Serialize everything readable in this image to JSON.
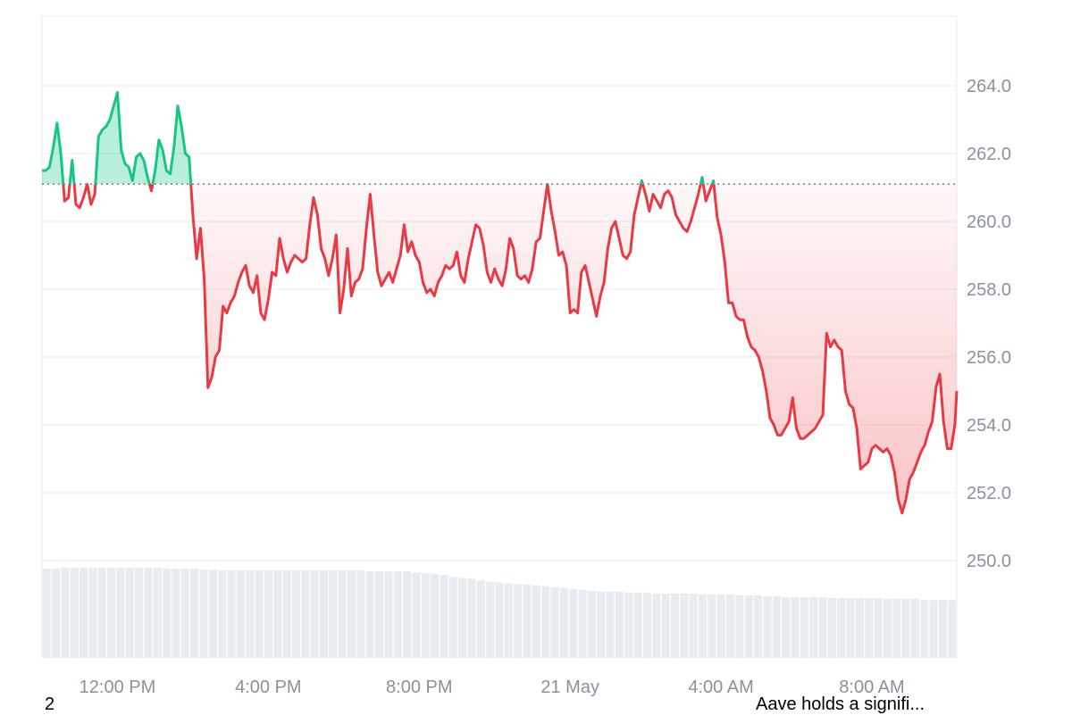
{
  "chart_data": {
    "type": "area",
    "baseline": 261.1,
    "ylim": [
      248.0,
      266.0
    ],
    "yticks": [
      250.0,
      252.0,
      254.0,
      256.0,
      258.0,
      260.0,
      262.0,
      264.0
    ],
    "ytick_labels": [
      "250.0",
      "252.0",
      "254.0",
      "256.0",
      "258.0",
      "260.0",
      "262.0",
      "264.0"
    ],
    "xlim": [
      10.0,
      34.25
    ],
    "xticks": [
      12,
      16,
      20,
      24,
      28,
      32
    ],
    "xtick_labels": [
      "12:00 PM",
      "4:00 PM",
      "8:00 PM",
      "21 May",
      "4:00 AM",
      "8:00 AM"
    ],
    "x": [
      10.0,
      10.1,
      10.2,
      10.3,
      10.4,
      10.5,
      10.6,
      10.7,
      10.8,
      10.9,
      11.0,
      11.1,
      11.2,
      11.3,
      11.4,
      11.5,
      11.6,
      11.7,
      11.8,
      11.9,
      12.0,
      12.1,
      12.2,
      12.3,
      12.4,
      12.5,
      12.6,
      12.7,
      12.8,
      12.9,
      13.0,
      13.1,
      13.2,
      13.3,
      13.4,
      13.5,
      13.6,
      13.7,
      13.8,
      13.9,
      14.0,
      14.1,
      14.2,
      14.3,
      14.4,
      14.5,
      14.6,
      14.7,
      14.8,
      14.9,
      15.0,
      15.1,
      15.2,
      15.3,
      15.4,
      15.5,
      15.6,
      15.7,
      15.8,
      15.9,
      16.0,
      16.1,
      16.2,
      16.3,
      16.4,
      16.5,
      16.6,
      16.7,
      16.8,
      16.9,
      17.0,
      17.1,
      17.2,
      17.3,
      17.4,
      17.5,
      17.6,
      17.7,
      17.8,
      17.9,
      18.0,
      18.1,
      18.2,
      18.3,
      18.4,
      18.5,
      18.6,
      18.7,
      18.8,
      18.9,
      19.0,
      19.1,
      19.2,
      19.3,
      19.4,
      19.5,
      19.6,
      19.7,
      19.8,
      19.9,
      20.0,
      20.1,
      20.2,
      20.3,
      20.4,
      20.5,
      20.6,
      20.7,
      20.8,
      20.9,
      21.0,
      21.1,
      21.2,
      21.3,
      21.4,
      21.5,
      21.6,
      21.7,
      21.8,
      21.9,
      22.0,
      22.1,
      22.2,
      22.3,
      22.4,
      22.5,
      22.6,
      22.7,
      22.8,
      22.9,
      23.0,
      23.1,
      23.2,
      23.3,
      23.4,
      23.5,
      23.6,
      23.7,
      23.8,
      23.9,
      24.0,
      24.1,
      24.2,
      24.3,
      24.4,
      24.5,
      24.6,
      24.7,
      24.8,
      24.9,
      25.0,
      25.1,
      25.2,
      25.3,
      25.4,
      25.5,
      25.6,
      25.7,
      25.8,
      25.9,
      26.0,
      26.1,
      26.2,
      26.3,
      26.4,
      26.5,
      26.6,
      26.7,
      26.8,
      26.9,
      27.0,
      27.1,
      27.2,
      27.3,
      27.4,
      27.5,
      27.6,
      27.7,
      27.8,
      27.9,
      28.0,
      28.1,
      28.2,
      28.3,
      28.4,
      28.5,
      28.6,
      28.7,
      28.8,
      28.9,
      29.0,
      29.1,
      29.2,
      29.3,
      29.4,
      29.5,
      29.6,
      29.7,
      29.8,
      29.9,
      30.0,
      30.1,
      30.2,
      30.3,
      30.4,
      30.5,
      30.6,
      30.7,
      30.8,
      30.9,
      31.0,
      31.1,
      31.2,
      31.3,
      31.4,
      31.5,
      31.6,
      31.7,
      31.8,
      31.9,
      32.0,
      32.1,
      32.2,
      32.3,
      32.4,
      32.5,
      32.6,
      32.7,
      32.8,
      32.9,
      33.0,
      33.1,
      33.2,
      33.3,
      33.4,
      33.5,
      33.6,
      33.7,
      33.8,
      33.9,
      34.0,
      34.1,
      34.2,
      34.25
    ],
    "y": [
      261.5,
      261.5,
      261.6,
      262.2,
      262.9,
      262.0,
      260.6,
      260.7,
      261.8,
      260.5,
      260.4,
      260.7,
      261.1,
      260.5,
      260.8,
      262.5,
      262.7,
      262.8,
      263.0,
      263.4,
      263.8,
      262.1,
      261.7,
      261.6,
      261.2,
      261.9,
      262.0,
      261.8,
      261.3,
      260.9,
      261.5,
      262.4,
      262.1,
      261.5,
      261.4,
      262.2,
      263.4,
      262.8,
      262.0,
      261.9,
      260.2,
      258.9,
      259.8,
      258.3,
      255.1,
      255.4,
      256.0,
      256.2,
      257.5,
      257.3,
      257.6,
      257.8,
      258.2,
      258.5,
      258.7,
      258.1,
      257.9,
      258.4,
      257.3,
      257.1,
      257.7,
      258.5,
      258.4,
      259.5,
      258.9,
      258.5,
      258.8,
      259.0,
      258.9,
      258.8,
      258.9,
      259.9,
      260.7,
      260.2,
      259.2,
      258.9,
      258.4,
      258.9,
      259.6,
      257.3,
      258.0,
      259.2,
      257.8,
      258.2,
      258.3,
      258.6,
      259.8,
      260.8,
      259.6,
      258.5,
      258.1,
      258.3,
      258.5,
      258.2,
      258.6,
      259.0,
      259.9,
      259.1,
      259.4,
      259.0,
      258.8,
      258.2,
      257.9,
      258.0,
      257.8,
      258.2,
      258.4,
      258.7,
      258.6,
      258.7,
      259.1,
      258.4,
      258.2,
      258.9,
      259.4,
      259.9,
      259.8,
      259.3,
      258.5,
      258.2,
      258.6,
      258.3,
      258.1,
      258.6,
      259.5,
      259.2,
      258.4,
      258.3,
      258.4,
      258.2,
      258.6,
      259.4,
      259.5,
      260.3,
      261.1,
      260.3,
      259.7,
      259.0,
      259.1,
      258.7,
      257.3,
      257.4,
      257.3,
      258.5,
      258.7,
      258.2,
      257.7,
      257.2,
      257.8,
      258.2,
      259.2,
      259.8,
      260.0,
      259.5,
      259.0,
      258.9,
      259.1,
      260.2,
      260.7,
      261.2,
      260.8,
      260.3,
      260.8,
      260.6,
      260.4,
      260.8,
      260.9,
      260.7,
      260.2,
      260.0,
      259.8,
      259.7,
      260.0,
      260.4,
      260.8,
      261.3,
      260.6,
      260.9,
      261.2,
      260.1,
      259.6,
      258.8,
      257.6,
      257.6,
      257.2,
      257.1,
      257.1,
      256.6,
      256.3,
      256.2,
      256.0,
      255.6,
      255.0,
      254.2,
      254.0,
      253.7,
      253.7,
      253.9,
      254.1,
      254.8,
      253.9,
      253.6,
      253.6,
      253.7,
      253.8,
      253.9,
      254.1,
      254.3,
      256.7,
      256.3,
      256.5,
      256.3,
      256.2,
      255.0,
      254.6,
      254.5,
      253.9,
      252.7,
      252.8,
      252.9,
      253.3,
      253.4,
      253.3,
      253.2,
      253.3,
      253.1,
      252.6,
      251.8,
      251.4,
      251.8,
      252.4,
      252.6,
      252.9,
      253.2,
      253.4,
      253.8,
      254.1,
      255.1,
      255.5,
      254.1,
      253.3,
      253.3,
      254.0,
      255.0
    ],
    "volume_relative": [
      0.97,
      0.97,
      0.98,
      0.98,
      0.98,
      0.98,
      0.98,
      0.98,
      0.98,
      0.98,
      0.98,
      0.98,
      0.98,
      0.97,
      0.97,
      0.97,
      0.97,
      0.96,
      0.96,
      0.95,
      0.95,
      0.95,
      0.95,
      0.95,
      0.95,
      0.95,
      0.95,
      0.95,
      0.95,
      0.95,
      0.95,
      0.95,
      0.95,
      0.95,
      0.95,
      0.94,
      0.94,
      0.94,
      0.94,
      0.94,
      0.93,
      0.92,
      0.91,
      0.9,
      0.88,
      0.87,
      0.86,
      0.84,
      0.83,
      0.82,
      0.81,
      0.8,
      0.8,
      0.79,
      0.78,
      0.77,
      0.76,
      0.75,
      0.74,
      0.73,
      0.72,
      0.72,
      0.72,
      0.71,
      0.71,
      0.71,
      0.7,
      0.7,
      0.7,
      0.7,
      0.7,
      0.69,
      0.69,
      0.69,
      0.69,
      0.68,
      0.68,
      0.68,
      0.67,
      0.67,
      0.66,
      0.66,
      0.66,
      0.66,
      0.66,
      0.65,
      0.65,
      0.65,
      0.65,
      0.65,
      0.65,
      0.64,
      0.64,
      0.64,
      0.64,
      0.63,
      0.63,
      0.63,
      0.63
    ],
    "colors": {
      "up_line": "#16c784",
      "down_line": "#ea3943",
      "grid": "#eff2f5",
      "baseline_dots": "#7b7b7b",
      "tick_text": "#8a919e",
      "volume": "#e7ecf0"
    },
    "grid": true
  },
  "footer": {
    "left_text": "2",
    "right_text": "Aave holds a signifi..."
  }
}
